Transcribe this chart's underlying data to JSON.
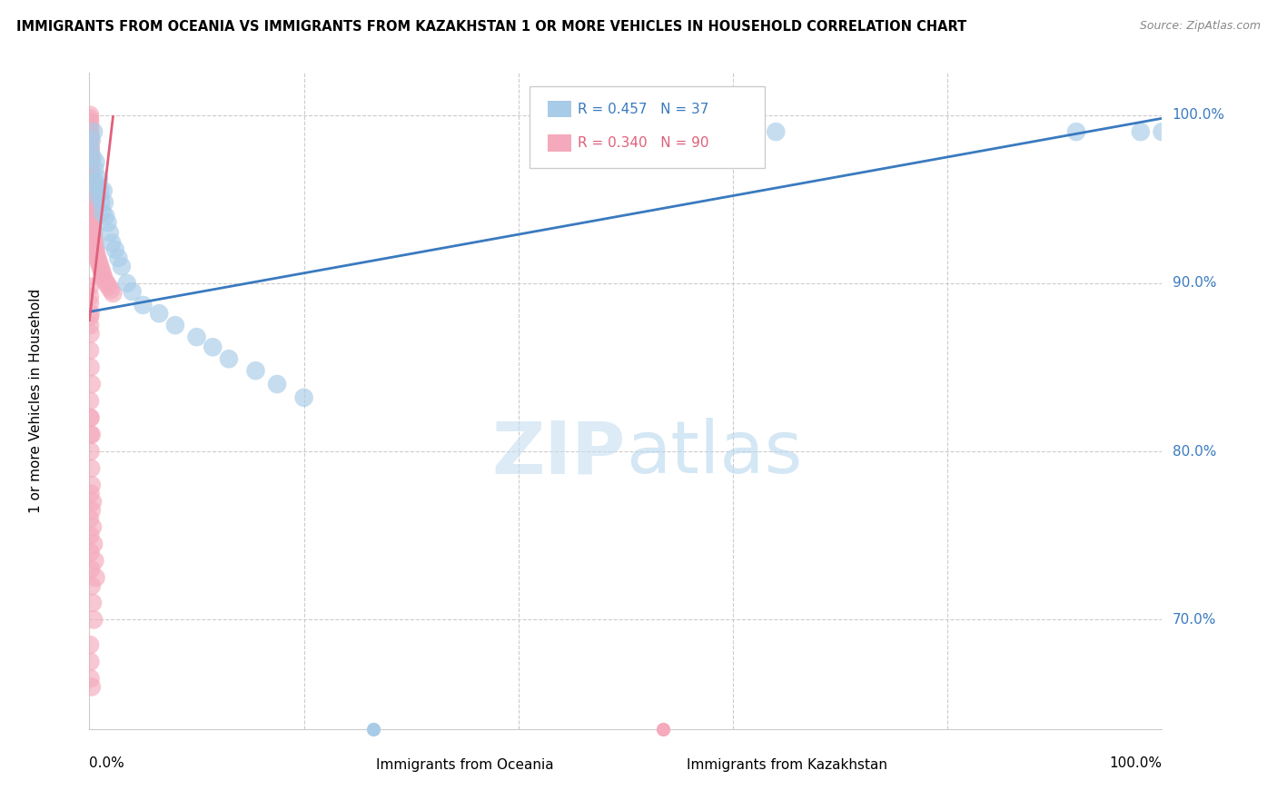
{
  "title": "IMMIGRANTS FROM OCEANIA VS IMMIGRANTS FROM KAZAKHSTAN 1 OR MORE VEHICLES IN HOUSEHOLD CORRELATION CHART",
  "source": "Source: ZipAtlas.com",
  "ylabel": "1 or more Vehicles in Household",
  "blue_color": "#a8cce8",
  "pink_color": "#f4aabc",
  "blue_line_color": "#3a7abf",
  "pink_line_color": "#e0607a",
  "legend_R_blue": "R = 0.457",
  "legend_N_blue": "N = 37",
  "legend_R_pink": "R = 0.340",
  "legend_N_pink": "N = 90",
  "xlim": [
    0.0,
    1.0
  ],
  "ylim": [
    0.635,
    1.025
  ],
  "yticks": [
    0.7,
    0.8,
    0.9,
    1.0
  ],
  "ytick_labels": [
    "70.0%",
    "80.0%",
    "90.0%",
    "100.0%"
  ],
  "blue_x": [
    0.001,
    0.002,
    0.003,
    0.004,
    0.005,
    0.006,
    0.006,
    0.007,
    0.008,
    0.009,
    0.01,
    0.011,
    0.012,
    0.013,
    0.014,
    0.015,
    0.017,
    0.019,
    0.021,
    0.024,
    0.027,
    0.03,
    0.035,
    0.04,
    0.05,
    0.065,
    0.08,
    0.1,
    0.115,
    0.13,
    0.155,
    0.175,
    0.2,
    0.64,
    0.92,
    0.98,
    1.0
  ],
  "blue_y": [
    0.98,
    0.985,
    0.975,
    0.99,
    0.968,
    0.96,
    0.972,
    0.958,
    0.952,
    0.962,
    0.955,
    0.948,
    0.942,
    0.955,
    0.948,
    0.94,
    0.936,
    0.93,
    0.924,
    0.92,
    0.915,
    0.91,
    0.9,
    0.895,
    0.887,
    0.882,
    0.875,
    0.868,
    0.862,
    0.855,
    0.848,
    0.84,
    0.832,
    0.99,
    0.99,
    0.99,
    0.99
  ],
  "pink_x": [
    0.0005,
    0.0005,
    0.0005,
    0.0005,
    0.0005,
    0.0005,
    0.0008,
    0.0008,
    0.0008,
    0.0008,
    0.001,
    0.001,
    0.001,
    0.001,
    0.001,
    0.001,
    0.001,
    0.001,
    0.0015,
    0.0015,
    0.0015,
    0.0015,
    0.002,
    0.002,
    0.002,
    0.002,
    0.002,
    0.002,
    0.002,
    0.0025,
    0.0025,
    0.003,
    0.003,
    0.003,
    0.003,
    0.004,
    0.004,
    0.004,
    0.005,
    0.005,
    0.006,
    0.006,
    0.007,
    0.008,
    0.009,
    0.01,
    0.011,
    0.012,
    0.013,
    0.014,
    0.016,
    0.018,
    0.02,
    0.022,
    0.0005,
    0.0008,
    0.001,
    0.0015,
    0.002,
    0.003,
    0.0005,
    0.0008,
    0.001,
    0.0015,
    0.002,
    0.003,
    0.004,
    0.0005,
    0.001,
    0.002,
    0.0005,
    0.001,
    0.002,
    0.0005,
    0.001,
    0.0005,
    0.001,
    0.0005,
    0.0005,
    0.0005,
    0.001,
    0.002,
    0.003,
    0.004,
    0.005,
    0.006,
    0.0005,
    0.0008,
    0.001,
    0.002
  ],
  "pink_y": [
    1.0,
    0.998,
    0.996,
    0.994,
    0.992,
    0.99,
    0.988,
    0.986,
    0.984,
    0.982,
    0.98,
    0.978,
    0.976,
    0.974,
    0.972,
    0.97,
    0.968,
    0.966,
    0.964,
    0.962,
    0.96,
    0.958,
    0.956,
    0.954,
    0.952,
    0.95,
    0.948,
    0.946,
    0.944,
    0.942,
    0.94,
    0.938,
    0.936,
    0.934,
    0.932,
    0.93,
    0.928,
    0.926,
    0.924,
    0.922,
    0.92,
    0.918,
    0.916,
    0.914,
    0.912,
    0.91,
    0.908,
    0.906,
    0.904,
    0.902,
    0.9,
    0.898,
    0.896,
    0.894,
    0.82,
    0.81,
    0.8,
    0.79,
    0.78,
    0.77,
    0.76,
    0.75,
    0.74,
    0.73,
    0.72,
    0.71,
    0.7,
    0.86,
    0.85,
    0.84,
    0.83,
    0.82,
    0.81,
    0.88,
    0.87,
    0.892,
    0.882,
    0.898,
    0.888,
    0.875,
    0.775,
    0.765,
    0.755,
    0.745,
    0.735,
    0.725,
    0.685,
    0.675,
    0.665,
    0.66
  ],
  "blue_trend_x": [
    0.0,
    1.0
  ],
  "blue_trend_y": [
    0.883,
    0.998
  ],
  "pink_trend_x": [
    0.0,
    0.022
  ],
  "pink_trend_y": [
    0.878,
    0.999
  ]
}
